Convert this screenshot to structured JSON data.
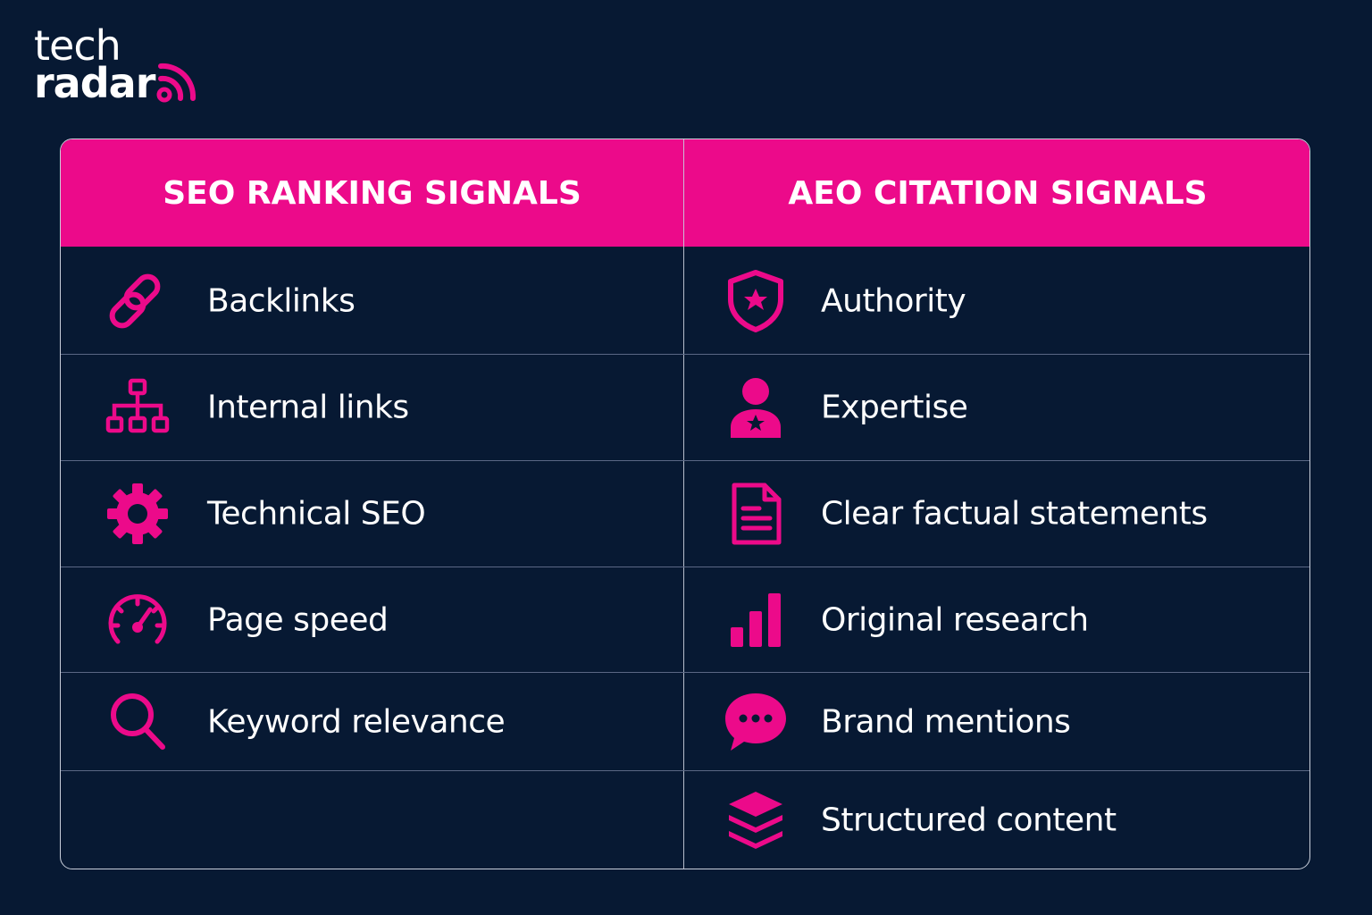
{
  "brand": {
    "logo_line1": "tech",
    "logo_line2": "radar",
    "accent_color": "#ec0a8a",
    "background_color": "#071933"
  },
  "table": {
    "left_header": "SEO RANKING SIGNALS",
    "right_header": "AEO CITATION SIGNALS",
    "left_items": [
      {
        "label": "Backlinks",
        "icon": "link-icon"
      },
      {
        "label": "Internal links",
        "icon": "sitemap-icon"
      },
      {
        "label": "Technical SEO",
        "icon": "gear-icon"
      },
      {
        "label": "Page speed",
        "icon": "speedometer-icon"
      },
      {
        "label": "Keyword relevance",
        "icon": "search-icon"
      }
    ],
    "right_items": [
      {
        "label": "Authority",
        "icon": "shield-star-icon"
      },
      {
        "label": "Expertise",
        "icon": "expert-user-icon"
      },
      {
        "label": "Clear factual statements",
        "icon": "document-icon"
      },
      {
        "label": "Original research",
        "icon": "bar-chart-icon"
      },
      {
        "label": "Brand mentions",
        "icon": "chat-bubble-icon"
      },
      {
        "label": "Structured content",
        "icon": "layers-icon"
      }
    ]
  }
}
